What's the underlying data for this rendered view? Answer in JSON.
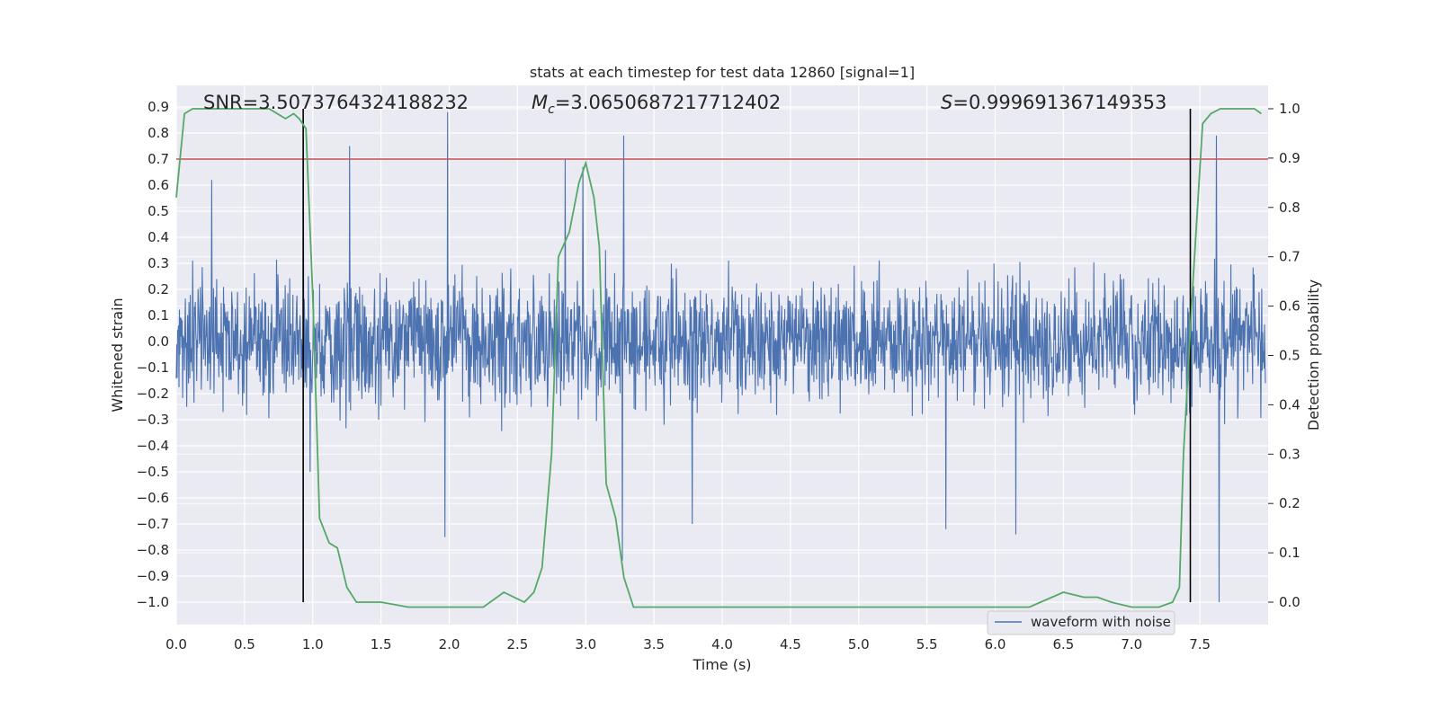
{
  "chart_data": {
    "type": "line",
    "title": "stats at each timestep for test data 12860 [signal=1]",
    "xlabel": "Time (s)",
    "ylabel": "Whitened strain",
    "ylabel_right": "Detection probability",
    "xlim": [
      0.0,
      8.0
    ],
    "ylim": [
      -1.09,
      0.97
    ],
    "ylim_right": [
      -0.05,
      1.05
    ],
    "x_ticks": [
      "0.0",
      "0.5",
      "1.0",
      "1.5",
      "2.0",
      "2.5",
      "3.0",
      "3.5",
      "4.0",
      "4.5",
      "5.0",
      "5.5",
      "6.0",
      "6.5",
      "7.0",
      "7.5"
    ],
    "y_ticks": [
      "0.9",
      "0.8",
      "0.7",
      "0.6",
      "0.5",
      "0.4",
      "0.3",
      "0.2",
      "0.1",
      "0.0",
      "−0.1",
      "−0.2",
      "−0.3",
      "−0.4",
      "−0.5",
      "−0.6",
      "−0.7",
      "−0.8",
      "−0.9",
      "−1.0"
    ],
    "y_right_ticks": [
      "1.0",
      "0.9",
      "0.8",
      "0.7",
      "0.6",
      "0.5",
      "0.4",
      "0.3",
      "0.2",
      "0.1",
      "0.0"
    ],
    "grid": true,
    "legend_position": "lower-right",
    "annotations": {
      "snr": "SNR=3.5073764324188232",
      "mc_prefix": "M",
      "mc_sub": "c",
      "mc_value": "=3.0650687217712402",
      "s_prefix": "S",
      "s_value": "=0.999691367149353"
    },
    "threshold": {
      "value": 0.7,
      "color": "#c44e52"
    },
    "vlines": [
      0.93,
      7.43
    ],
    "series": [
      {
        "name": "waveform with noise",
        "color": "#4c72b0",
        "axis": "left",
        "kind": "noise",
        "envelope_typical": 0.3,
        "peaks": [
          {
            "x": 0.26,
            "y": 0.62
          },
          {
            "x": 0.93,
            "y": 0.78
          },
          {
            "x": 1.27,
            "y": 0.75
          },
          {
            "x": 1.99,
            "y": 0.88
          },
          {
            "x": 2.85,
            "y": 0.7
          },
          {
            "x": 2.98,
            "y": 0.67
          },
          {
            "x": 3.28,
            "y": 0.79
          },
          {
            "x": 7.62,
            "y": 0.79
          },
          {
            "x": 0.98,
            "y": -0.5
          },
          {
            "x": 1.97,
            "y": -0.75
          },
          {
            "x": 3.27,
            "y": -0.84
          },
          {
            "x": 3.78,
            "y": -0.7
          },
          {
            "x": 5.64,
            "y": -0.72
          },
          {
            "x": 6.15,
            "y": -0.74
          },
          {
            "x": 7.64,
            "y": -1.0
          }
        ]
      },
      {
        "name": "detection probability",
        "color": "#55a868",
        "axis": "right",
        "kind": "line",
        "x": [
          0.0,
          0.06,
          0.12,
          0.2,
          0.3,
          0.45,
          0.55,
          0.68,
          0.8,
          0.86,
          0.9,
          0.95,
          1.0,
          1.05,
          1.12,
          1.18,
          1.25,
          1.32,
          1.5,
          1.7,
          1.9,
          2.1,
          2.25,
          2.4,
          2.55,
          2.62,
          2.68,
          2.75,
          2.8,
          2.88,
          2.95,
          3.0,
          3.06,
          3.1,
          3.15,
          3.22,
          3.28,
          3.35,
          3.4,
          3.55,
          3.7,
          3.85,
          4.05,
          4.2,
          4.4,
          4.6,
          4.75,
          4.9,
          5.1,
          5.4,
          5.6,
          5.85,
          6.05,
          6.25,
          6.5,
          6.65,
          6.75,
          6.85,
          7.0,
          7.2,
          7.3,
          7.35,
          7.38,
          7.45,
          7.52,
          7.58,
          7.65,
          7.8,
          7.9,
          7.95
        ],
        "y": [
          0.82,
          0.99,
          1.0,
          1.0,
          1.0,
          1.0,
          1.0,
          1.0,
          0.98,
          0.99,
          0.98,
          0.96,
          0.62,
          0.17,
          0.12,
          0.11,
          0.03,
          0.0,
          0.0,
          -0.01,
          -0.01,
          -0.01,
          -0.01,
          0.02,
          0.0,
          0.02,
          0.07,
          0.3,
          0.7,
          0.75,
          0.85,
          0.89,
          0.82,
          0.72,
          0.24,
          0.17,
          0.05,
          -0.01,
          -0.01,
          -0.01,
          -0.01,
          -0.01,
          -0.01,
          -0.01,
          -0.01,
          -0.01,
          -0.01,
          -0.01,
          -0.01,
          -0.01,
          -0.01,
          -0.01,
          -0.01,
          -0.01,
          0.02,
          0.01,
          0.01,
          0.0,
          -0.01,
          -0.01,
          0.0,
          0.03,
          0.3,
          0.65,
          0.97,
          0.99,
          1.0,
          1.0,
          1.0,
          0.99
        ]
      }
    ]
  }
}
